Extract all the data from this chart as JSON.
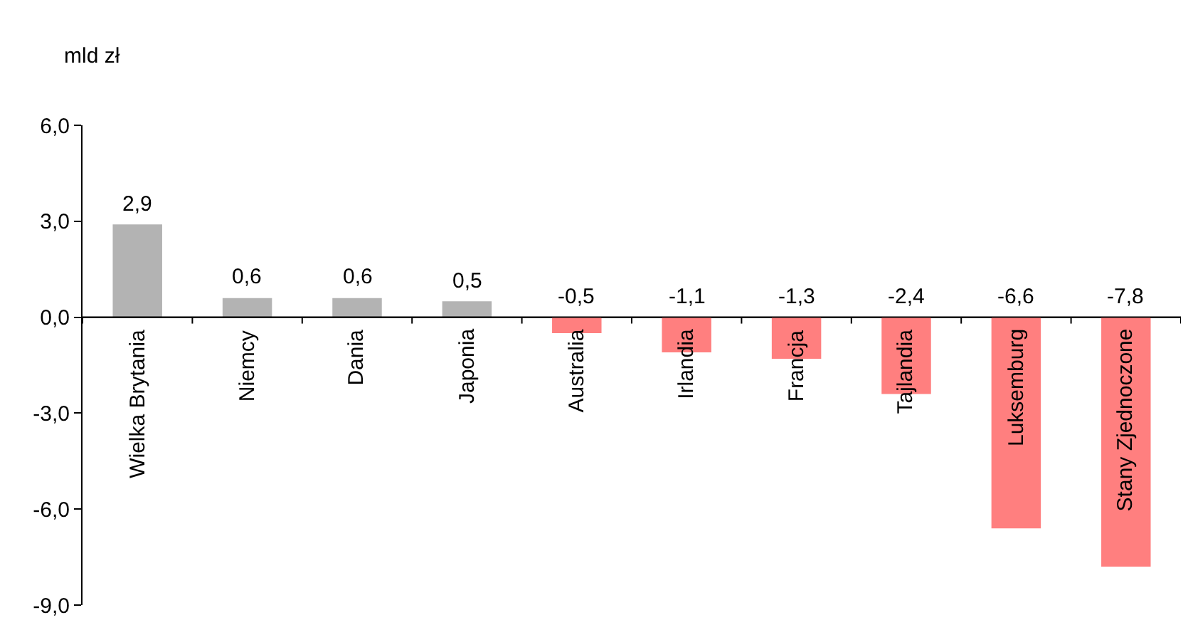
{
  "chart_data": {
    "type": "bar",
    "ylabel": "mld zł",
    "categories": [
      "Wielka Brytania",
      "Niemcy",
      "Dania",
      "Japonia",
      "Australia",
      "Irlandia",
      "Francja",
      "Tajlandia",
      "Luksemburg",
      "Stany Zjednoczone"
    ],
    "values": [
      2.9,
      0.6,
      0.6,
      0.5,
      -0.5,
      -1.1,
      -1.3,
      -2.4,
      -6.6,
      -7.8
    ],
    "colors": [
      "#b3b3b3",
      "#b3b3b3",
      "#b3b3b3",
      "#b3b3b3",
      "#ff7f7f",
      "#ff7f7f",
      "#ff7f7f",
      "#ff7f7f",
      "#ff7f7f",
      "#ff7f7f"
    ],
    "value_labels": [
      "2,9",
      "0,6",
      "0,6",
      "0,5",
      "-0,5",
      "-1,1",
      "-1,3",
      "-2,4",
      "-6,6",
      "-7,8"
    ],
    "ylim": [
      -9,
      6
    ],
    "yticks": [
      {
        "value": -9,
        "label": "-9,0"
      },
      {
        "value": -6,
        "label": "-6,0"
      },
      {
        "value": -3,
        "label": "-3,0"
      },
      {
        "value": 0,
        "label": "0,0"
      },
      {
        "value": 3,
        "label": "3,0"
      },
      {
        "value": 6,
        "label": "6,0"
      }
    ]
  }
}
